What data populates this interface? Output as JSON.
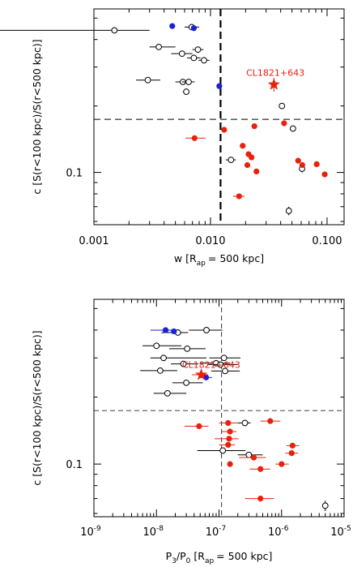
{
  "colors": {
    "red": "#e8210c",
    "blue": "#1a22d6",
    "black": "#000000"
  },
  "chart_data": [
    {
      "type": "scatter",
      "xscale": "log",
      "yscale": "log",
      "xlim": [
        0.001,
        0.14
      ],
      "ylim": [
        0.058,
        0.55
      ],
      "xlabel": "w [R",
      "xlabel_sub": "ap",
      "xlabel_tail": "= 500 kpc]",
      "ylabel": "c [S(r<100 kpc)/S(r<500 kpc)]",
      "xticks": [
        {
          "v": 0.001,
          "label": "0.001"
        },
        {
          "v": 0.01,
          "label": "0.010"
        },
        {
          "v": 0.1,
          "label": "0.100"
        }
      ],
      "yticks": [
        {
          "v": 0.1,
          "label": "0.1"
        }
      ],
      "vline": 0.0122,
      "hline": 0.174,
      "annotation": {
        "text": "CL1821+643",
        "x": 0.036,
        "y": 0.265
      },
      "series": [
        {
          "style": "open-black",
          "points": [
            {
              "x": 0.0015,
              "y": 0.44,
              "xerr": [
                0.0015,
                0.0015
              ]
            },
            {
              "x": 0.0036,
              "y": 0.37,
              "xerr": [
                0.0006,
                0.0014
              ]
            },
            {
              "x": 0.0057,
              "y": 0.345,
              "xerr": [
                0.0011,
                0.0013
              ]
            },
            {
              "x": 0.0069,
              "y": 0.455,
              "xerr": [
                0.0009,
                0.0011
              ]
            },
            {
              "x": 0.0078,
              "y": 0.36,
              "xerr": [
                0.0008,
                0.0009
              ]
            },
            {
              "x": 0.0072,
              "y": 0.33,
              "xerr": [
                0.0009,
                0.001
              ]
            },
            {
              "x": 0.0088,
              "y": 0.322,
              "xerr": [
                0.0009,
                0.001
              ]
            },
            {
              "x": 0.0029,
              "y": 0.262,
              "xerr": [
                0.0006,
                0.0008
              ]
            },
            {
              "x": 0.0058,
              "y": 0.257,
              "xerr": [
                0.0008,
                0.0008
              ]
            },
            {
              "x": 0.0065,
              "y": 0.257,
              "xerr": [
                0.0008,
                0.0008
              ]
            },
            {
              "x": 0.0062,
              "y": 0.232,
              "xerr": [
                0.0004,
                0.0004
              ]
            },
            {
              "x": 0.041,
              "y": 0.2,
              "xerr": [
                0.0015,
                0.0015
              ]
            },
            {
              "x": 0.051,
              "y": 0.158,
              "xerr": [
                0.0025,
                0.0025
              ]
            },
            {
              "x": 0.015,
              "y": 0.114,
              "xerr": [
                0.0015,
                0.0015
              ]
            },
            {
              "x": 0.061,
              "y": 0.104,
              "yerr": [
                0.004,
                0.004
              ]
            },
            {
              "x": 0.047,
              "y": 0.067,
              "yerr": [
                0.003,
                0.003
              ]
            }
          ]
        },
        {
          "style": "filled-blue",
          "points": [
            {
              "x": 0.0047,
              "y": 0.46
            },
            {
              "x": 0.0072,
              "y": 0.45
            },
            {
              "x": 0.0119,
              "y": 0.246
            }
          ]
        },
        {
          "style": "filled-red",
          "points": [
            {
              "x": 0.0073,
              "y": 0.143,
              "xerr": [
                0.0012,
                0.0018
              ]
            },
            {
              "x": 0.0131,
              "y": 0.156
            },
            {
              "x": 0.0238,
              "y": 0.162
            },
            {
              "x": 0.0428,
              "y": 0.167
            },
            {
              "x": 0.0212,
              "y": 0.121,
              "xerr": [
                0.0011,
                0.0011
              ]
            },
            {
              "x": 0.0189,
              "y": 0.132
            },
            {
              "x": 0.0207,
              "y": 0.108
            },
            {
              "x": 0.0225,
              "y": 0.117
            },
            {
              "x": 0.0248,
              "y": 0.101
            },
            {
              "x": 0.0565,
              "y": 0.113
            },
            {
              "x": 0.0613,
              "y": 0.108
            },
            {
              "x": 0.0815,
              "y": 0.109
            },
            {
              "x": 0.0955,
              "y": 0.098
            },
            {
              "x": 0.0176,
              "y": 0.078,
              "xerr": [
                0.002,
                0.002
              ]
            }
          ]
        },
        {
          "style": "star-red",
          "points": [
            {
              "x": 0.035,
              "y": 0.25,
              "yerr": [
                0.018,
                0.018
              ]
            }
          ]
        }
      ]
    },
    {
      "type": "scatter",
      "xscale": "log",
      "yscale": "log",
      "xlim": [
        1e-09,
        1e-05
      ],
      "ylim": [
        0.058,
        0.55
      ],
      "xlabel": "P",
      "xlabel_sub1": "3",
      "xlabel_mid": "/P",
      "xlabel_sub2": "0",
      "xlabel_gap": "[R",
      "xlabel_sub3": "ap",
      "xlabel_tail": "= 500 kpc]",
      "ylabel": "c [S(r<100 kpc)/S(r<500 kpc)]",
      "xticks": [
        {
          "v": 1e-09,
          "base": "10",
          "exp": "-9"
        },
        {
          "v": 1e-08,
          "base": "10",
          "exp": "-8"
        },
        {
          "v": 1e-07,
          "base": "10",
          "exp": "-7"
        },
        {
          "v": 1e-06,
          "base": "10",
          "exp": "-6"
        },
        {
          "v": 1e-05,
          "base": "10",
          "exp": "-5"
        }
      ],
      "yticks": [
        {
          "v": 0.1,
          "label": "0.1"
        }
      ],
      "vline": 1.1e-07,
      "hline": 0.174,
      "annotation": {
        "text": "CL1821+643",
        "x": 7.5e-08,
        "y": 0.262
      },
      "series": [
        {
          "style": "open-black",
          "points": [
            {
              "x": 2.2e-08,
              "y": 0.39,
              "xerr": [
                1e-08,
                1e-08
              ]
            },
            {
              "x": 6.3e-08,
              "y": 0.4,
              "xerr": [
                3e-08,
                5e-08
              ]
            },
            {
              "x": 1e-08,
              "y": 0.34,
              "xerr": [
                4e-09,
                1.5e-08
              ]
            },
            {
              "x": 3.1e-08,
              "y": 0.33,
              "xerr": [
                1.5e-08,
                3e-08
              ]
            },
            {
              "x": 1.3e-08,
              "y": 0.3,
              "xerr": [
                5e-09,
                5e-08
              ]
            },
            {
              "x": 1.2e-07,
              "y": 0.3,
              "xerr": [
                5e-08,
                1e-07
              ]
            },
            {
              "x": 2.7e-08,
              "y": 0.282,
              "xerr": [
                1e-08,
                2e-08
              ]
            },
            {
              "x": 9e-08,
              "y": 0.284,
              "xerr": [
                4e-08,
                6e-08
              ]
            },
            {
              "x": 1.05e-07,
              "y": 0.28,
              "xerr": [
                4e-08,
                1e-07
              ]
            },
            {
              "x": 1.15e-08,
              "y": 0.263,
              "xerr": [
                6e-09,
                1e-08
              ]
            },
            {
              "x": 1.25e-07,
              "y": 0.262,
              "xerr": [
                5e-08,
                9e-08
              ]
            },
            {
              "x": 3e-08,
              "y": 0.232,
              "xerr": [
                1.2e-08,
                2.5e-08
              ]
            },
            {
              "x": 1.5e-08,
              "y": 0.208,
              "xerr": [
                6e-09,
                1.5e-08
              ]
            },
            {
              "x": 2.6e-07,
              "y": 0.153,
              "xerr": [
                6e-08,
                6e-08
              ]
            },
            {
              "x": 1.15e-07,
              "y": 0.115,
              "xerr": [
                7e-08,
                1.5e-07
              ]
            },
            {
              "x": 3e-07,
              "y": 0.11,
              "xerr": [
                1e-07,
                2e-07
              ]
            },
            {
              "x": 5e-06,
              "y": 0.065,
              "yerr": [
                0.0035,
                0.0035
              ]
            }
          ]
        },
        {
          "style": "filled-blue",
          "points": [
            {
              "x": 1.4e-08,
              "y": 0.4,
              "xerr": [
                6e-09,
                8e-09
              ]
            },
            {
              "x": 1.9e-08,
              "y": 0.395
            },
            {
              "x": 6.2e-08,
              "y": 0.245,
              "xerr": [
                1.5e-08,
                1.5e-08
              ]
            }
          ]
        },
        {
          "style": "filled-red",
          "points": [
            {
              "x": 1.4e-07,
              "y": 0.153,
              "xerr": [
                4e-08,
                6e-08
              ]
            },
            {
              "x": 6.6e-07,
              "y": 0.156,
              "xerr": [
                2e-07,
                3e-07
              ]
            },
            {
              "x": 4.8e-08,
              "y": 0.148,
              "xerr": [
                2e-08,
                2e-08
              ]
            },
            {
              "x": 1.5e-07,
              "y": 0.14,
              "xerr": [
                4e-08,
                4e-08
              ]
            },
            {
              "x": 1.45e-07,
              "y": 0.13,
              "xerr": [
                6e-08,
                6e-08
              ]
            },
            {
              "x": 1.4e-07,
              "y": 0.122,
              "xerr": [
                4e-08,
                4e-08
              ]
            },
            {
              "x": 1.5e-06,
              "y": 0.121,
              "xerr": [
                3e-07,
                4e-07
              ]
            },
            {
              "x": 1.45e-06,
              "y": 0.112,
              "xerr": [
                3e-07,
                4e-07
              ]
            },
            {
              "x": 3.6e-07,
              "y": 0.107,
              "xerr": [
                1.5e-07,
                2e-07
              ]
            },
            {
              "x": 1e-06,
              "y": 0.1,
              "xerr": [
                2e-07,
                3e-07
              ]
            },
            {
              "x": 4.6e-07,
              "y": 0.095,
              "xerr": [
                1.5e-07,
                2e-07
              ]
            },
            {
              "x": 1.5e-07,
              "y": 0.1
            },
            {
              "x": 4.6e-07,
              "y": 0.07,
              "xerr": [
                2e-07,
                3e-07
              ]
            }
          ]
        },
        {
          "style": "star-red",
          "points": [
            {
              "x": 5.2e-08,
              "y": 0.252,
              "xerr": [
                1.5e-08,
                1.5e-08
              ]
            }
          ]
        }
      ]
    }
  ]
}
